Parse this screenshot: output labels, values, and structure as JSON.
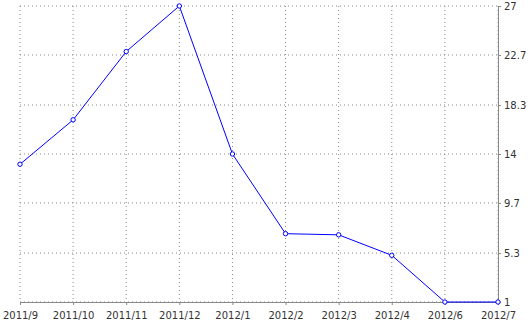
{
  "chart_data": {
    "type": "line",
    "categories": [
      "2011/9",
      "2011/10",
      "2011/11",
      "2011/12",
      "2012/1",
      "2012/2",
      "2012/3",
      "2012/4",
      "2012/6",
      "2012/7"
    ],
    "values": [
      13.1,
      17,
      23,
      27,
      14,
      7,
      6.9,
      5.1,
      1,
      1
    ],
    "color": "#0000ff",
    "ylim": [
      1,
      27
    ],
    "yticks": [
      1,
      5.3,
      9.7,
      14,
      18.3,
      22.7,
      27
    ],
    "grid": true,
    "marker": "circle"
  }
}
